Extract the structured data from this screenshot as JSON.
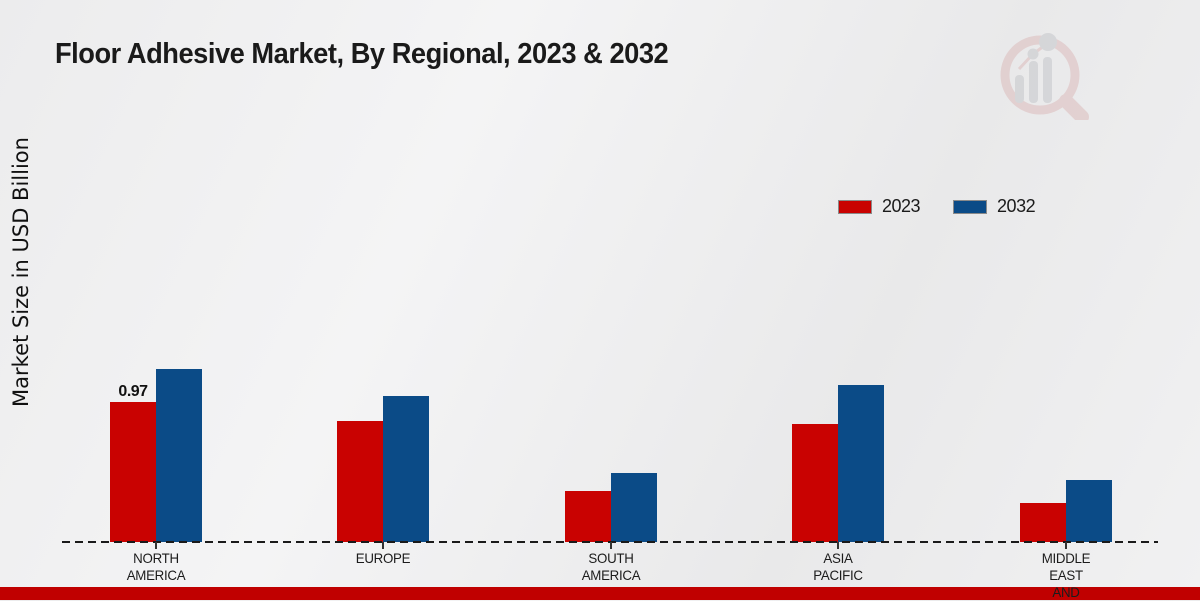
{
  "header": {
    "title": "Floor Adhesive Market, By Regional, 2023 & 2032"
  },
  "chart_data": {
    "type": "bar",
    "title": "Floor Adhesive Market, By Regional, 2023 & 2032",
    "xlabel": "",
    "ylabel": "Market Size in USD Billion",
    "categories": [
      [
        "NORTH",
        "AMERICA"
      ],
      [
        "EUROPE"
      ],
      [
        "SOUTH",
        "AMERICA"
      ],
      [
        "ASIA",
        "PACIFIC"
      ],
      [
        "MIDDLE",
        "EAST",
        "AND"
      ]
    ],
    "series": [
      {
        "name": "2023",
        "color": "#c90201",
        "values": [
          0.97,
          0.84,
          0.35,
          0.82,
          0.27
        ]
      },
      {
        "name": "2032",
        "color": "#0b4b87",
        "values": [
          1.2,
          1.01,
          0.48,
          1.09,
          0.43
        ]
      }
    ],
    "data_labels": [
      {
        "category_index": 0,
        "series_index": 0,
        "text": "0.97"
      }
    ],
    "ylim": [
      0,
      1.3
    ],
    "grid": false,
    "legend_position": "top-right",
    "baseline_style": "dashed"
  },
  "colors": {
    "series_2023": "#c90201",
    "series_2032": "#0b4b87",
    "footer_bar": "#c00000",
    "text": "#1a1a1a"
  },
  "icons": {
    "watermark": "magnifier-bar-chart-logo"
  }
}
